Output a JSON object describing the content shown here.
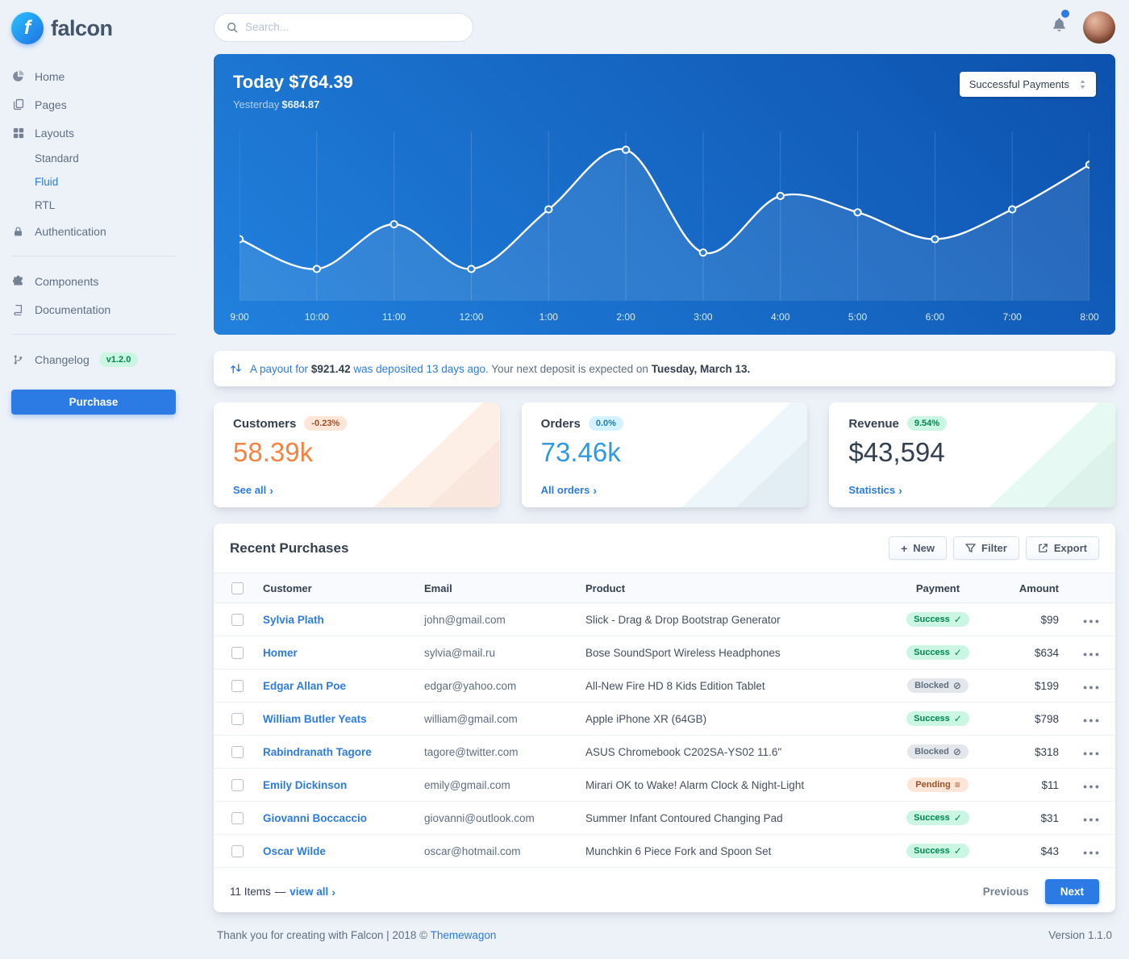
{
  "brand": {
    "name": "falcon"
  },
  "topbar": {
    "search_placeholder": "Search..."
  },
  "sidebar": {
    "home": "Home",
    "pages": "Pages",
    "layouts": "Layouts",
    "layouts_children": {
      "standard": "Standard",
      "fluid": "Fluid",
      "rtl": "RTL"
    },
    "authentication": "Authentication",
    "components": "Components",
    "documentation": "Documentation",
    "changelog": "Changelog",
    "changelog_badge": "v1.2.0",
    "purchase": "Purchase"
  },
  "chart_card": {
    "title": "Today $764.39",
    "subtitle_label": "Yesterday",
    "subtitle_value": "$684.87",
    "dropdown": "Successful Payments"
  },
  "chart_data": {
    "type": "line",
    "title": "Today $764.39",
    "x": [
      "9:00",
      "10:00",
      "11:00",
      "12:00",
      "1:00",
      "2:00",
      "3:00",
      "4:00",
      "5:00",
      "6:00",
      "7:00",
      "8:00"
    ],
    "values": [
      34,
      14,
      44,
      14,
      54,
      94,
      25,
      63,
      52,
      34,
      54,
      84
    ],
    "ylim": [
      0,
      100
    ],
    "grid": "vertical",
    "legend": "none",
    "line_color": "#ffffff",
    "background": "blue-gradient"
  },
  "payout": {
    "link_part1": "A payout for",
    "amount": "$921.42",
    "link_part2": "was deposited 13 days ago.",
    "middle": "Your next deposit is expected on",
    "date": "Tuesday, March 13."
  },
  "stats": [
    {
      "title": "Customers",
      "badge": "-0.23%",
      "badge_type": "warning",
      "value": "58.39k",
      "value_color": "#f5823f",
      "link": "See all"
    },
    {
      "title": "Orders",
      "badge": "0.0%",
      "badge_type": "info",
      "value": "73.46k",
      "value_color": "#2f9ae0",
      "link": "All orders"
    },
    {
      "title": "Revenue",
      "badge": "9.54%",
      "badge_type": "success",
      "value": "$43,594",
      "value_color": "#344050",
      "link": "Statistics"
    }
  ],
  "purchases": {
    "title": "Recent Purchases",
    "buttons": {
      "new": "New",
      "filter": "Filter",
      "export": "Export"
    },
    "columns": [
      "Customer",
      "Email",
      "Product",
      "Payment",
      "Amount"
    ],
    "rows": [
      {
        "customer": "Sylvia Plath",
        "email": "john@gmail.com",
        "product": "Slick - Drag & Drop Bootstrap Generator",
        "payment": "Success",
        "status": "success",
        "amount": "$99"
      },
      {
        "customer": "Homer",
        "email": "sylvia@mail.ru",
        "product": "Bose SoundSport Wireless Headphones",
        "payment": "Success",
        "status": "success",
        "amount": "$634"
      },
      {
        "customer": "Edgar Allan Poe",
        "email": "edgar@yahoo.com",
        "product": "All-New Fire HD 8 Kids Edition Tablet",
        "payment": "Blocked",
        "status": "blocked",
        "amount": "$199"
      },
      {
        "customer": "William Butler Yeats",
        "email": "william@gmail.com",
        "product": "Apple iPhone XR (64GB)",
        "payment": "Success",
        "status": "success",
        "amount": "$798"
      },
      {
        "customer": "Rabindranath Tagore",
        "email": "tagore@twitter.com",
        "product": "ASUS Chromebook C202SA-YS02 11.6\"",
        "payment": "Blocked",
        "status": "blocked",
        "amount": "$318"
      },
      {
        "customer": "Emily Dickinson",
        "email": "emily@gmail.com",
        "product": "Mirari OK to Wake! Alarm Clock & Night-Light",
        "payment": "Pending",
        "status": "pending",
        "amount": "$11"
      },
      {
        "customer": "Giovanni Boccaccio",
        "email": "giovanni@outlook.com",
        "product": "Summer Infant Contoured Changing Pad",
        "payment": "Success",
        "status": "success",
        "amount": "$31"
      },
      {
        "customer": "Oscar Wilde",
        "email": "oscar@hotmail.com",
        "product": "Munchkin 6 Piece Fork and Spoon Set",
        "payment": "Success",
        "status": "success",
        "amount": "$43"
      }
    ],
    "footer": {
      "items": "11 Items",
      "dash": "—",
      "view_all": "view all",
      "previous": "Previous",
      "next": "Next"
    }
  },
  "page_footer": {
    "left_text": "Thank you for creating with Falcon | 2018 ©",
    "brand_link": "Themewagon",
    "version": "Version 1.1.0"
  }
}
